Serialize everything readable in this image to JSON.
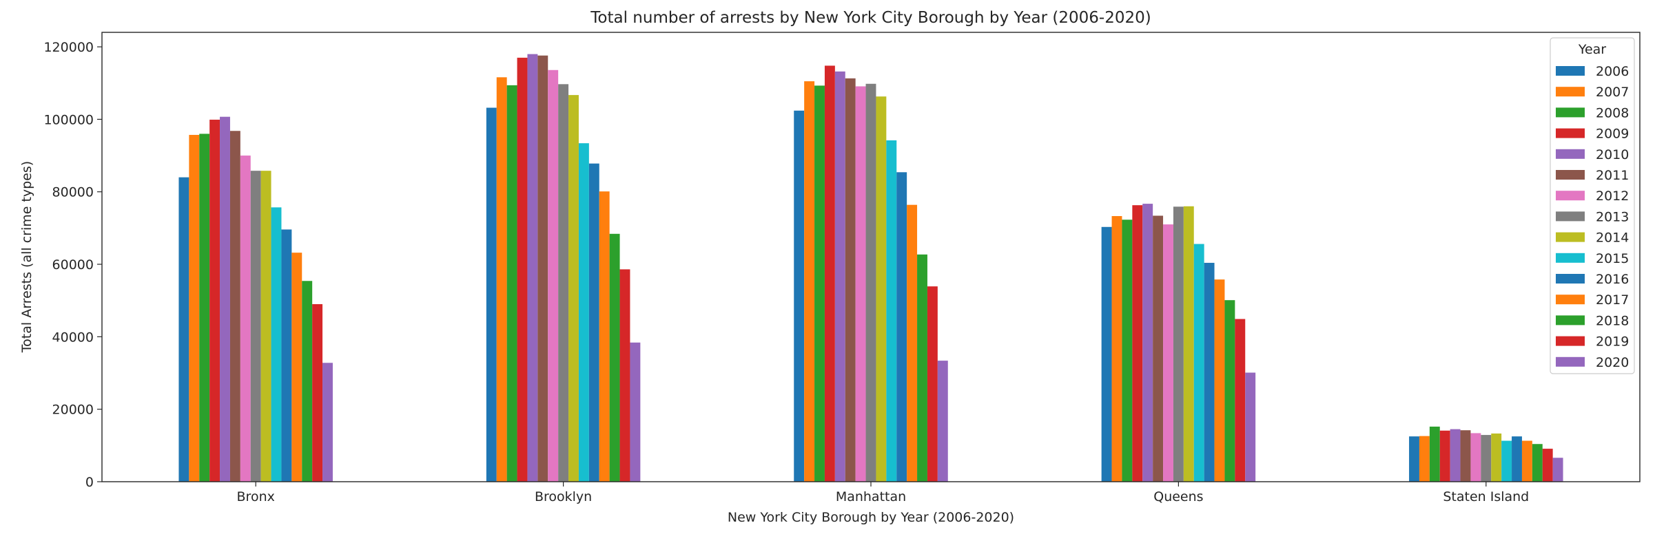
{
  "chart_data": {
    "type": "bar",
    "title": "Total number of arrests by New York City Borough by Year (2006-2020)",
    "xlabel": "New York City Borough by Year (2006-2020)",
    "ylabel": "Total Arrests (all crime types)",
    "ylim": [
      0,
      124000
    ],
    "yticks": [
      0,
      20000,
      40000,
      60000,
      80000,
      100000,
      120000
    ],
    "categories": [
      "Bronx",
      "Brooklyn",
      "Manhattan",
      "Queens",
      "Staten Island"
    ],
    "legend": {
      "title": "Year",
      "placement": "top-right"
    },
    "grid": false,
    "series": [
      {
        "name": "2006",
        "color": "#1f77b4",
        "values": [
          84000,
          103200,
          102400,
          70300,
          12500
        ]
      },
      {
        "name": "2007",
        "color": "#ff7f0e",
        "values": [
          95700,
          111600,
          110500,
          73300,
          12600
        ]
      },
      {
        "name": "2008",
        "color": "#2ca02c",
        "values": [
          96000,
          109400,
          109300,
          72300,
          15200
        ]
      },
      {
        "name": "2009",
        "color": "#d62728",
        "values": [
          99900,
          117000,
          114800,
          76300,
          14100
        ]
      },
      {
        "name": "2010",
        "color": "#9467bd",
        "values": [
          100700,
          118000,
          113200,
          76700,
          14500
        ]
      },
      {
        "name": "2011",
        "color": "#8c564b",
        "values": [
          96800,
          117600,
          111300,
          73400,
          14200
        ]
      },
      {
        "name": "2012",
        "color": "#e377c2",
        "values": [
          90000,
          113600,
          109100,
          71000,
          13400
        ]
      },
      {
        "name": "2013",
        "color": "#7f7f7f",
        "values": [
          85800,
          109700,
          109800,
          75900,
          12900
        ]
      },
      {
        "name": "2014",
        "color": "#bcbd22",
        "values": [
          85800,
          106700,
          106300,
          76000,
          13300
        ]
      },
      {
        "name": "2015",
        "color": "#17becf",
        "values": [
          75700,
          93400,
          94200,
          65600,
          11300
        ]
      },
      {
        "name": "2016",
        "color": "#1f77b4",
        "values": [
          69600,
          87800,
          85400,
          60400,
          12500
        ]
      },
      {
        "name": "2017",
        "color": "#ff7f0e",
        "values": [
          63200,
          80100,
          76400,
          55800,
          11300
        ]
      },
      {
        "name": "2018",
        "color": "#2ca02c",
        "values": [
          55400,
          68400,
          62700,
          50100,
          10400
        ]
      },
      {
        "name": "2019",
        "color": "#d62728",
        "values": [
          49000,
          58600,
          53900,
          44900,
          9100
        ]
      },
      {
        "name": "2020",
        "color": "#9467bd",
        "values": [
          32800,
          38400,
          33400,
          30100,
          6600
        ]
      }
    ]
  }
}
